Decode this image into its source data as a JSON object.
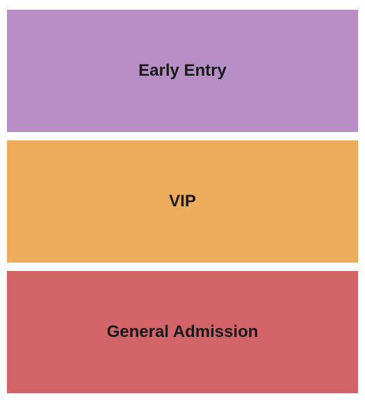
{
  "seating_chart": {
    "type": "infographic",
    "background_color": "#ffffff",
    "container_padding_y": 14,
    "container_padding_x": 10,
    "section_gap": 12,
    "label_fontsize": 24,
    "label_fontweight": 700,
    "label_color": "#1a1a1a",
    "sections": [
      {
        "label": "Early Entry",
        "background_color": "#b78fc6"
      },
      {
        "label": "VIP",
        "background_color": "#edad5c"
      },
      {
        "label": "General Admission",
        "background_color": "#d36569"
      }
    ]
  }
}
